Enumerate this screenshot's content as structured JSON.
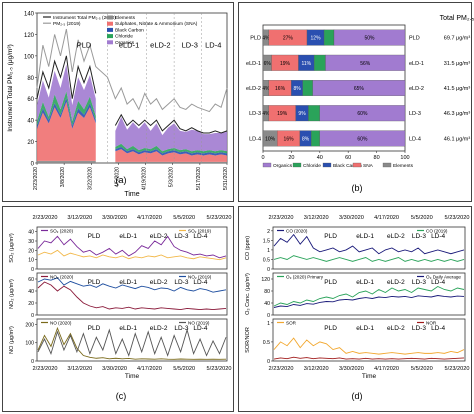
{
  "chart_data": [
    {
      "id": "a",
      "type": "area",
      "panel_label": "(a)",
      "xlabel": "Time",
      "ylabel": "Instrument Total PM₂.₅ (μg/m³)",
      "x_ticks": [
        "2/23/2020",
        "3/8/2020",
        "3/22/2020",
        "4/5/2020",
        "4/19/2020",
        "5/3/2020",
        "5/17/2020",
        "5/31/2020"
      ],
      "y_ticks": [
        0,
        20,
        40,
        60,
        80,
        100,
        120,
        140
      ],
      "ylim": [
        0,
        140
      ],
      "period_labels": [
        "PLD",
        "eLD-1",
        "eLD-2",
        "LD-3",
        "LD-4"
      ],
      "legend": [
        "Instrument Total PM₂.₅ (2020)",
        "PM₂.₅ (2019)",
        "Elements",
        "Sulphates, Nitrate & Ammonium (SNA)",
        "Black Carbon",
        "Chloride",
        "Organics"
      ],
      "colors": {
        "organics": "#a17bd0",
        "chloride": "#2aa35a",
        "black_carbon": "#2a4fb0",
        "sna": "#f07070",
        "elements": "#8a8a8a",
        "total": "#222222",
        "pm2019": "#9a9a9a"
      },
      "x": [
        0,
        3,
        6,
        9,
        12,
        15,
        18,
        21,
        24,
        27,
        30,
        36,
        40,
        43,
        46,
        49,
        52,
        55,
        58,
        61,
        64,
        67,
        70,
        73,
        76,
        79,
        82,
        85,
        88,
        91,
        94,
        97
      ],
      "series": [
        {
          "name": "Elements",
          "values": [
            2,
            2,
            2,
            2,
            2,
            2,
            2,
            2,
            2,
            2,
            2,
            null,
            1,
            1,
            1,
            1,
            1,
            1,
            1,
            1,
            1,
            1,
            1,
            1,
            1,
            1,
            1,
            1,
            1,
            1,
            1,
            1
          ]
        },
        {
          "name": "Sulphates, Nitrate & Ammonium (SNA)",
          "values": [
            30,
            45,
            35,
            50,
            40,
            55,
            30,
            45,
            40,
            50,
            35,
            null,
            10,
            12,
            8,
            10,
            7,
            9,
            8,
            10,
            6,
            8,
            9,
            7,
            8,
            6,
            7,
            6,
            7,
            6,
            7,
            6
          ]
        },
        {
          "name": "Black Carbon",
          "values": [
            3,
            4,
            3,
            4,
            3,
            4,
            3,
            4,
            3,
            4,
            3,
            null,
            2,
            2,
            2,
            2,
            2,
            2,
            2,
            2,
            2,
            2,
            2,
            2,
            2,
            2,
            2,
            2,
            2,
            2,
            2,
            2
          ]
        },
        {
          "name": "Chloride",
          "values": [
            4,
            6,
            3,
            8,
            5,
            6,
            4,
            7,
            5,
            6,
            4,
            null,
            2,
            3,
            2,
            3,
            2,
            2,
            2,
            3,
            2,
            2,
            2,
            2,
            2,
            2,
            2,
            2,
            2,
            2,
            2,
            2
          ]
        },
        {
          "name": "Organics",
          "values": [
            15,
            20,
            18,
            22,
            20,
            25,
            15,
            22,
            18,
            20,
            16,
            null,
            15,
            25,
            18,
            22,
            20,
            24,
            17,
            21,
            15,
            20,
            23,
            18,
            16,
            20,
            18,
            16,
            15,
            17,
            16,
            18
          ]
        },
        {
          "name": "Instrument Total PM₂.₅ (2020)",
          "values": [
            60,
            85,
            70,
            95,
            80,
            100,
            60,
            90,
            75,
            90,
            65,
            null,
            35,
            45,
            35,
            40,
            35,
            40,
            35,
            40,
            30,
            35,
            40,
            32,
            30,
            33,
            30,
            28,
            28,
            30,
            28,
            30
          ]
        },
        {
          "name": "PM₂.₅ (2019)",
          "values": [
            70,
            110,
            90,
            120,
            100,
            125,
            85,
            115,
            95,
            110,
            90,
            80,
            60,
            70,
            55,
            60,
            50,
            65,
            55,
            60,
            50,
            55,
            60,
            52,
            50,
            55,
            52,
            50,
            48,
            55,
            52,
            70
          ]
        }
      ]
    },
    {
      "id": "b",
      "type": "bar",
      "orientation": "horizontal-stacked-percent",
      "panel_label": "(b)",
      "right_header": "Total PM₂.₅",
      "categories": [
        "PLD",
        "eLD-1",
        "eLD-2",
        "LD-3",
        "LD-4"
      ],
      "x_ticks": [
        0,
        20,
        40,
        60,
        80,
        100
      ],
      "totals": [
        "69.7 μg/m³",
        "31.5 μg/m³",
        "41.5 μg/m³",
        "46.3 μg/m³",
        "46.1 μg/m³"
      ],
      "legend": [
        "Organics",
        "Chloride",
        "Black Carbon",
        "SNA",
        "Elements"
      ],
      "colors": {
        "Elements": "#8a8a8a",
        "SNA": "#f07070",
        "Black Carbon": "#2a4fb0",
        "Chloride": "#2aa35a",
        "Organics": "#a17bd0"
      },
      "series": [
        {
          "name": "Elements",
          "values": [
            4,
            6,
            4,
            4,
            10
          ],
          "labels": [
            "4%",
            "6%",
            "4%",
            "4%",
            "10%"
          ]
        },
        {
          "name": "SNA",
          "values": [
            27,
            19,
            16,
            19,
            16
          ],
          "labels": [
            "27%",
            "19%",
            "16%",
            "19%",
            "16%"
          ]
        },
        {
          "name": "Black Carbon",
          "values": [
            12,
            11,
            8,
            9,
            8
          ],
          "labels": [
            "12%",
            "11%",
            "8%",
            "9%",
            "8%"
          ]
        },
        {
          "name": "Chloride",
          "values": [
            7,
            8,
            7,
            8,
            6
          ],
          "labels": [
            "",
            "",
            "",
            "",
            ""
          ]
        },
        {
          "name": "Organics",
          "values": [
            50,
            56,
            65,
            60,
            60
          ],
          "labels": [
            "50%",
            "56%",
            "65%",
            "60%",
            "60%"
          ]
        }
      ]
    },
    {
      "id": "c",
      "type": "line",
      "panel_label": "(c)",
      "xlabel": "Time",
      "x_ticks": [
        "2/23/2020",
        "3/12/2020",
        "3/30/2020",
        "4/17/2020",
        "5/5/2020",
        "5/23/2020"
      ],
      "period_labels": [
        "PLD",
        "eLD-1",
        "eLD-2",
        "LD-3",
        "LD-4"
      ],
      "subplots": [
        {
          "ylabel": "SO₂ (μg/m³)",
          "y_ticks": [
            0,
            10,
            20,
            30,
            40
          ],
          "ylim": [
            0,
            45
          ],
          "legend": [
            "SO₂ (2020)",
            "SO₂ (2019)"
          ],
          "series": [
            {
              "name": "SO₂ (2020)",
              "color": "#7a2a9a",
              "values": [
                22,
                30,
                28,
                35,
                26,
                32,
                24,
                18,
                20,
                15,
                18,
                22,
                16,
                20,
                14,
                18,
                25,
                22,
                30,
                26,
                35,
                24,
                20,
                18,
                15,
                16,
                14,
                15,
                12,
                14
              ]
            },
            {
              "name": "SO₂ (2019)",
              "color": "#f2b84a",
              "values": [
                15,
                18,
                16,
                20,
                14,
                17,
                15,
                13,
                14,
                12,
                15,
                13,
                12,
                14,
                11,
                13,
                12,
                14,
                13,
                15,
                12,
                13,
                14,
                12,
                11,
                13,
                12,
                11,
                10,
                12
              ]
            }
          ]
        },
        {
          "ylabel": "NO₂ (μg/m³)",
          "y_ticks": [
            0,
            20,
            40,
            60
          ],
          "ylim": [
            0,
            70
          ],
          "legend": [
            "NO₂ (2020)",
            "NO₂ (2019)"
          ],
          "series": [
            {
              "name": "NO₂ (2020)",
              "color": "#8a1a3a",
              "values": [
                45,
                55,
                50,
                40,
                48,
                42,
                30,
                20,
                15,
                12,
                14,
                10,
                12,
                11,
                13,
                10,
                12,
                11,
                10,
                12,
                11,
                10,
                9,
                11,
                10,
                9,
                10,
                9,
                10,
                11
              ]
            },
            {
              "name": "NO₂ (2019)",
              "color": "#1f4fa0",
              "values": [
                55,
                60,
                58,
                62,
                50,
                56,
                52,
                48,
                50,
                46,
                52,
                48,
                45,
                50,
                47,
                44,
                48,
                46,
                42,
                45,
                44,
                40,
                46,
                42,
                40,
                44,
                42,
                38,
                40,
                42
              ]
            }
          ]
        },
        {
          "ylabel": "NO (μg/m³)",
          "y_ticks": [
            0,
            100,
            200
          ],
          "ylim": [
            0,
            230
          ],
          "legend": [
            "NO (2020)",
            "NO (2019)"
          ],
          "series": [
            {
              "name": "NO (2020)",
              "color": "#7a6a1a",
              "values": [
                60,
                140,
                80,
                180,
                90,
                150,
                70,
                30,
                20,
                15,
                18,
                12,
                15,
                12,
                14,
                10,
                12,
                11,
                10,
                12,
                10,
                9,
                11,
                10,
                9,
                10,
                9,
                10,
                9,
                10
              ]
            },
            {
              "name": "NO (2019)",
              "color": "#555555",
              "values": [
                50,
                120,
                40,
                160,
                60,
                140,
                50,
                150,
                40,
                130,
                60,
                170,
                40,
                120,
                30,
                150,
                50,
                160,
                40,
                130,
                30,
                140,
                50,
                170,
                40,
                120,
                30,
                110,
                40,
                130
              ]
            }
          ]
        }
      ]
    },
    {
      "id": "d",
      "type": "line",
      "panel_label": "(d)",
      "xlabel": "Time",
      "x_ticks": [
        "2/23/2020",
        "3/12/2020",
        "3/30/2020",
        "4/17/2020",
        "5/5/2020",
        "5/23/2020"
      ],
      "period_labels": [
        "PLD",
        "eLD-1",
        "eLD-2",
        "LD-3",
        "LD-4"
      ],
      "subplots": [
        {
          "ylabel": "CO (ppm)",
          "y_ticks": [
            0,
            0.5,
            1,
            1.5,
            2
          ],
          "ylim": [
            0,
            2.2
          ],
          "legend": [
            "CO (2020)",
            "CO (2019)"
          ],
          "series": [
            {
              "name": "CO (2020)",
              "color": "#1a1a7a",
              "values": [
                1.2,
                1.6,
                1.4,
                1.8,
                1.3,
                1.7,
                1.1,
                0.9,
                1.0,
                1.1,
                0.9,
                1.0,
                1.2,
                0.9,
                1.0,
                1.1,
                0.8,
                1.0,
                1.1,
                0.9,
                1.0,
                0.9,
                1.1,
                0.8,
                0.9,
                1.0,
                0.9,
                0.8,
                0.9,
                1.0
              ]
            },
            {
              "name": "CO (2019)",
              "color": "#2aa35a",
              "values": [
                0.5,
                0.6,
                0.5,
                0.7,
                0.6,
                0.5,
                0.6,
                0.5,
                0.4,
                0.5,
                0.6,
                0.5,
                0.4,
                0.5,
                0.6,
                0.4,
                0.5,
                0.4,
                0.5,
                0.6,
                0.4,
                0.5,
                0.4,
                0.5,
                0.4,
                0.5,
                0.4,
                0.5,
                0.4,
                0.5
              ]
            }
          ]
        },
        {
          "ylabel": "O₃ Conc. (μg/m³)",
          "y_ticks": [
            0,
            40,
            80,
            120
          ],
          "ylim": [
            0,
            140
          ],
          "legend": [
            "O₃ (2020) Primary",
            "O₃ Daily Average"
          ],
          "series": [
            {
              "name": "O₃ (2020) Primary",
              "color": "#2aa35a",
              "values": [
                30,
                40,
                35,
                45,
                40,
                50,
                45,
                55,
                60,
                55,
                65,
                70,
                60,
                75,
                80,
                70,
                85,
                75,
                90,
                80,
                85,
                75,
                90,
                85,
                80,
                95,
                85,
                80,
                90,
                85
              ]
            },
            {
              "name": "O₃ Daily Average",
              "color": "#1a1a7a",
              "values": [
                25,
                30,
                28,
                35,
                32,
                38,
                36,
                42,
                45,
                44,
                50,
                52,
                50,
                55,
                58,
                55,
                60,
                58,
                62,
                60,
                62,
                58,
                64,
                62,
                60,
                65,
                62,
                60,
                63,
                62
              ]
            }
          ]
        },
        {
          "ylabel": "SOR/NOR",
          "y_ticks": [
            0,
            0.5,
            1
          ],
          "ylim": [
            0,
            1.1
          ],
          "legend": [
            "SOR",
            "NOR"
          ],
          "series": [
            {
              "name": "SOR",
              "color": "#f2a830",
              "values": [
                0.3,
                0.5,
                0.4,
                0.6,
                0.35,
                0.55,
                0.4,
                0.5,
                0.45,
                0.3,
                0.35,
                0.2,
                0.25,
                0.2,
                0.22,
                0.2,
                0.18,
                0.2,
                0.22,
                0.2,
                0.18,
                0.2,
                0.22,
                0.2,
                0.2,
                0.22,
                0.2,
                0.25,
                0.22,
                0.3
              ]
            },
            {
              "name": "NOR",
              "color": "#a01a1a",
              "values": [
                0.05,
                0.08,
                0.06,
                0.1,
                0.07,
                0.09,
                0.06,
                0.08,
                0.07,
                0.06,
                0.08,
                0.05,
                0.06,
                0.05,
                0.07,
                0.05,
                0.06,
                0.05,
                0.06,
                0.05,
                0.06,
                0.07,
                0.06,
                0.05,
                0.07,
                0.06,
                0.05,
                0.06,
                0.07,
                0.08
              ]
            }
          ]
        }
      ]
    }
  ]
}
